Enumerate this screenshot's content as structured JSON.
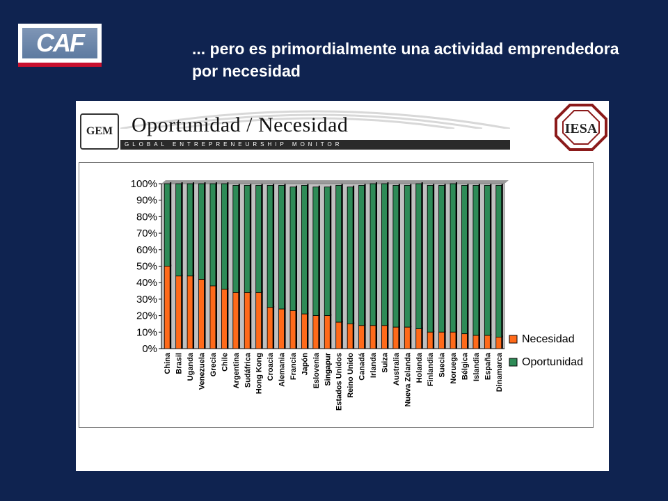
{
  "logo": {
    "text": "CAF"
  },
  "slide": {
    "title": "... pero es primordialmente una actividad emprendedora por necesidad"
  },
  "header": {
    "gem_logo": "GEM",
    "title": "Oportunidad / Necesidad",
    "subtitle": "GLOBAL ENTREPRENEURSHIP MONITOR",
    "iesa_logo": "IESA"
  },
  "colors": {
    "background": "#0f2350",
    "necesidad": "#ff6a1a",
    "oportunidad": "#2e8b57",
    "plot_area": "#c0c0c0"
  },
  "chart_data": {
    "type": "bar",
    "stacked": true,
    "categories": [
      "China",
      "Brasil",
      "Uganda",
      "Venezuela",
      "Grecia",
      "Chile",
      "Argentina",
      "Sudáfrica",
      "Hong Kong",
      "Croacia",
      "Alemania",
      "Francia",
      "Japón",
      "Eslovenia",
      "Singapur",
      "Estados Unidos",
      "Reino Unido",
      "Canadá",
      "Irlanda",
      "Suiza",
      "Australia",
      "Nueva Zelanda",
      "Holanda",
      "Finlandia",
      "Suecia",
      "Noruega",
      "Bélgica",
      "Islandia",
      "España",
      "Dinamarca"
    ],
    "series": [
      {
        "name": "Necesidad",
        "values": [
          50,
          44,
          44,
          42,
          38,
          36,
          34,
          34,
          34,
          25,
          24,
          23,
          21,
          20,
          20,
          16,
          15,
          14,
          14,
          14,
          13,
          13,
          12,
          10,
          10,
          10,
          9,
          8,
          8,
          7
        ]
      },
      {
        "name": "Oportunidad",
        "values": [
          50,
          56,
          56,
          58,
          62,
          64,
          65,
          65,
          65,
          74,
          75,
          75,
          78,
          78,
          78,
          83,
          83,
          85,
          86,
          86,
          86,
          86,
          88,
          89,
          89,
          90,
          90,
          91,
          91,
          92
        ]
      }
    ],
    "ylim": [
      0,
      100
    ],
    "yticks": [
      "0%",
      "10%",
      "20%",
      "30%",
      "40%",
      "50%",
      "60%",
      "70%",
      "80%",
      "90%",
      "100%"
    ],
    "legend": {
      "placement": "right",
      "entries": [
        "Necesidad",
        "Oportunidad"
      ]
    },
    "grid": false
  }
}
